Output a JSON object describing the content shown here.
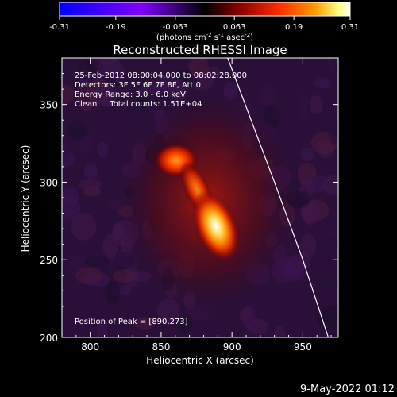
{
  "colorbar": {
    "tick_labels": [
      "-0.31",
      "-0.19",
      "-0.063",
      "0.063",
      "0.19",
      "0.31"
    ],
    "tick_values": [
      -0.31,
      -0.19,
      -0.063,
      0.063,
      0.19,
      0.31
    ],
    "range": [
      -0.31,
      0.31
    ],
    "units_prefix": "(photons cm",
    "units_exp1": "-2",
    "units_mid": " s",
    "units_exp2": "-1",
    "units_mid2": " asec",
    "units_exp3": "-2",
    "units_suffix": ")",
    "colors": [
      "#0000ff",
      "#8000ff",
      "#000000",
      "#8b0000",
      "#ff3000",
      "#ff9a00",
      "#ffff80",
      "#ffffff"
    ]
  },
  "chart_data": {
    "type": "heatmap",
    "title": "Reconstructed RHESSI Image",
    "xlabel": "Heliocentric X (arcsec)",
    "ylabel": "Heliocentric Y (arcsec)",
    "xlim": [
      780,
      975
    ],
    "ylim": [
      200,
      380
    ],
    "xticks": [
      800,
      850,
      900,
      950
    ],
    "yticks": [
      200,
      250,
      300,
      350
    ],
    "xtick_labels": [
      "800",
      "850",
      "900",
      "950"
    ],
    "ytick_labels": [
      "200",
      "250",
      "300",
      "350"
    ],
    "sources": [
      {
        "x": 890,
        "y": 273,
        "intensity": 1.0
      },
      {
        "x": 863,
        "y": 322,
        "intensity": 0.55
      }
    ],
    "limb_points": [
      [
        897,
        380
      ],
      [
        930,
        300
      ],
      [
        950,
        250
      ],
      [
        968,
        200
      ]
    ],
    "peak": [
      890,
      273
    ],
    "annotations": {
      "line1": "25-Feb-2012 08:00:04.000 to 08:02:28.000",
      "line2": "Detectors: 3F 5F 6F 7F 8F, Att 0",
      "line3": "Energy Range: 3.0 - 6.0 keV",
      "line4": "Clean     Total counts: 1.51E+04",
      "peak_label": "Position of Peak = [890,273]"
    }
  },
  "footer": {
    "timestamp": "9-May-2022 01:12"
  }
}
